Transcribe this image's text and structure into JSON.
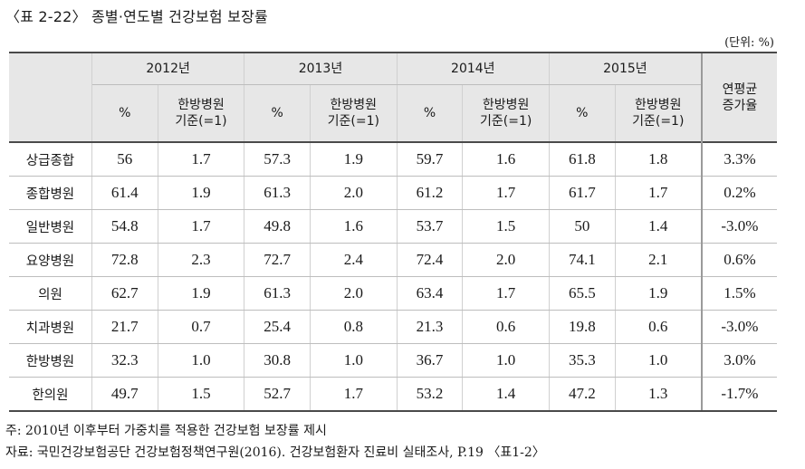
{
  "caption": "〈표 2-22〉 종별·연도별 건강보험 보장률",
  "unit": "(단위: %)",
  "table": {
    "years": [
      "2012년",
      "2013년",
      "2014년",
      "2015년"
    ],
    "sub_pct": "%",
    "sub_base_line1": "한방병원",
    "sub_base_line2": "기준(=1)",
    "growth_line1": "연평균",
    "growth_line2": "증가율",
    "rows": [
      {
        "label": "상급종합",
        "cells": [
          "56",
          "1.7",
          "57.3",
          "1.9",
          "59.7",
          "1.6",
          "61.8",
          "1.8"
        ],
        "growth": "3.3%"
      },
      {
        "label": "종합병원",
        "cells": [
          "61.4",
          "1.9",
          "61.3",
          "2.0",
          "61.2",
          "1.7",
          "61.7",
          "1.7"
        ],
        "growth": "0.2%"
      },
      {
        "label": "일반병원",
        "cells": [
          "54.8",
          "1.7",
          "49.8",
          "1.6",
          "53.7",
          "1.5",
          "50",
          "1.4"
        ],
        "growth": "-3.0%"
      },
      {
        "label": "요양병원",
        "cells": [
          "72.8",
          "2.3",
          "72.7",
          "2.4",
          "72.4",
          "2.0",
          "74.1",
          "2.1"
        ],
        "growth": "0.6%"
      },
      {
        "label": "의원",
        "cells": [
          "62.7",
          "1.9",
          "61.3",
          "2.0",
          "63.4",
          "1.7",
          "65.5",
          "1.9"
        ],
        "growth": "1.5%"
      },
      {
        "label": "치과병원",
        "cells": [
          "21.7",
          "0.7",
          "25.4",
          "0.8",
          "21.3",
          "0.6",
          "19.8",
          "0.6"
        ],
        "growth": "-3.0%"
      },
      {
        "label": "한방병원",
        "cells": [
          "32.3",
          "1.0",
          "30.8",
          "1.0",
          "36.7",
          "1.0",
          "35.3",
          "1.0"
        ],
        "growth": "3.0%"
      },
      {
        "label": "한의원",
        "cells": [
          "49.7",
          "1.5",
          "52.7",
          "1.7",
          "53.2",
          "1.4",
          "47.2",
          "1.3"
        ],
        "growth": "-1.7%"
      }
    ]
  },
  "notes": {
    "note1": "주: 2010년 이후부터 가중치를 적용한 건강보험 보장률 제시",
    "note2": "자료: 국민건강보험공단 건강보험정책연구원(2016). 건강보험환자 진료비 실태조사, P.19 〈표1-2〉"
  }
}
